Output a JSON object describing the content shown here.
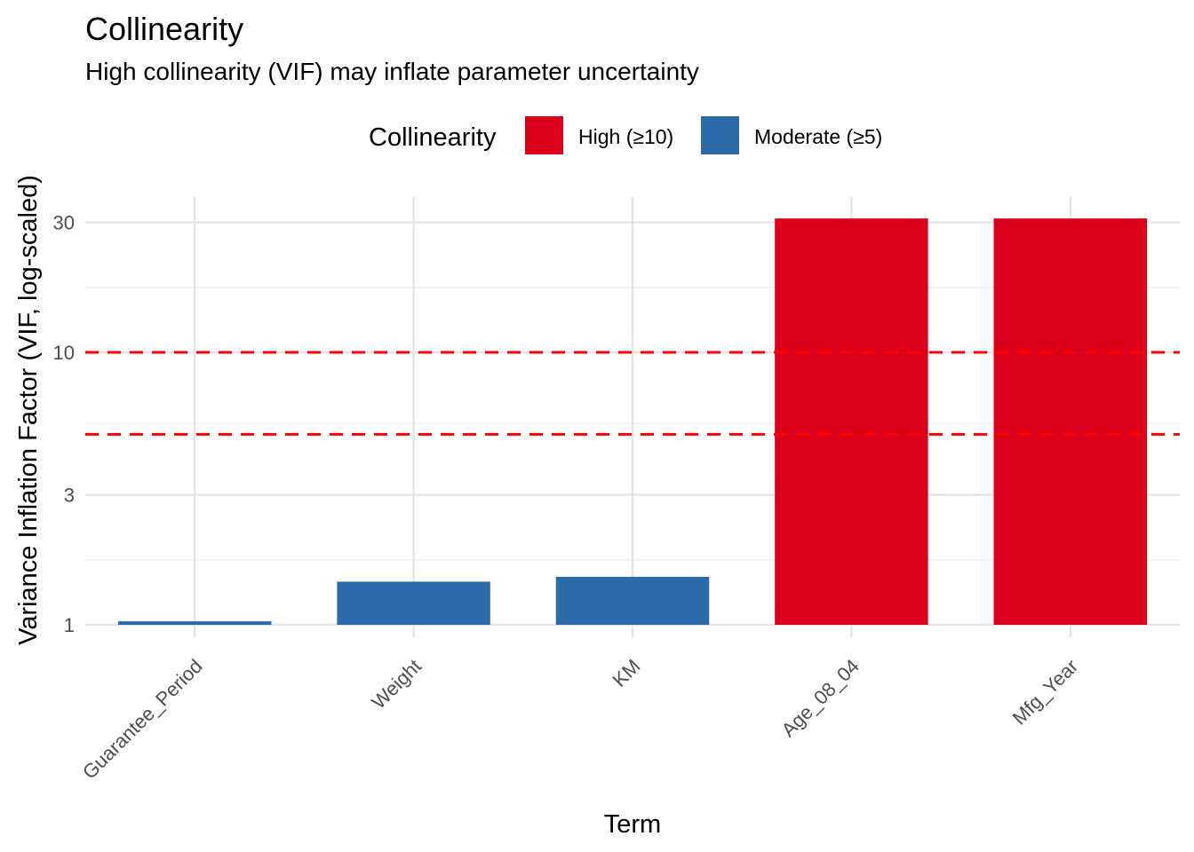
{
  "chart_data": {
    "type": "bar",
    "title": "Collinearity",
    "subtitle": "High collinearity (VIF) may inflate parameter uncertainty",
    "xlabel": "Term",
    "ylabel": "Variance Inflation Factor (VIF, log-scaled)",
    "y_scale": "log10",
    "ylim": [
      1,
      33
    ],
    "y_ticks": [
      1,
      3,
      10,
      30
    ],
    "y_minor_ticks": [
      1.73,
      5.48,
      17.3
    ],
    "categories": [
      "Guarantee_Period",
      "Weight",
      "KM",
      "Age_08_04",
      "Mfg_Year"
    ],
    "values": [
      1.03,
      1.44,
      1.5,
      31.0,
      31.0
    ],
    "groups": [
      "Moderate (≥5)",
      "Moderate (≥5)",
      "Moderate (≥5)",
      "High (≥10)",
      "High (≥10)"
    ],
    "reference_lines": [
      10,
      5
    ],
    "reference_line_color": "#ff0000",
    "legend": {
      "title": "Collinearity",
      "position": "top",
      "entries": [
        {
          "label": "High (≥10)",
          "color": "#dc001b"
        },
        {
          "label": "Moderate (≥5)",
          "color": "#2d6aa9"
        }
      ]
    },
    "grid": true
  }
}
